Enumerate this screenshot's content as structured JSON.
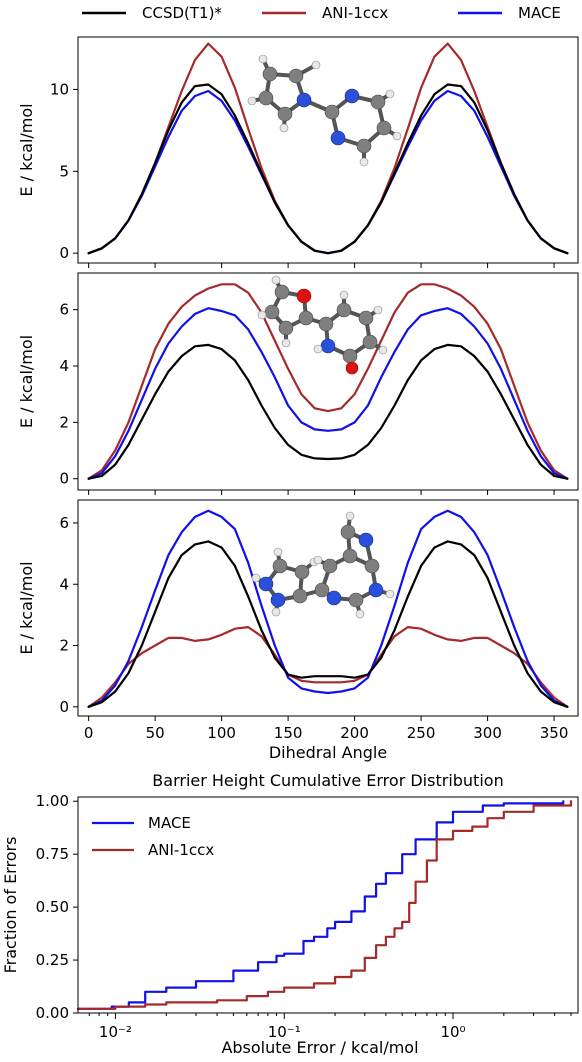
{
  "legend": {
    "ccsd": "CCSD(T1)*",
    "ani": "ANI-1ccx",
    "mace": "MACE"
  },
  "colors": {
    "ccsd": "#000000",
    "ani": "#a52a2a",
    "mace": "#1010e8",
    "atom_c": "#7f7f7f",
    "atom_n": "#2a4fd8",
    "atom_o": "#dd1111",
    "atom_h": "#e8e8e8"
  },
  "chart_data": [
    {
      "type": "line",
      "xlabel": "",
      "ylabel": "E / kcal/mol",
      "xlim": [
        -8,
        368
      ],
      "ylim": [
        -0.6,
        13.2
      ],
      "yticks": [
        0,
        5,
        10
      ],
      "xticks": [
        0,
        50,
        100,
        150,
        200,
        250,
        300,
        350
      ],
      "show_xtick_labels": false,
      "molecule_icon": "pyrrolyl-pyrimidine-molecule-icon",
      "x": [
        0,
        10,
        20,
        30,
        40,
        50,
        60,
        70,
        80,
        90,
        100,
        110,
        120,
        130,
        140,
        150,
        160,
        170,
        180,
        190,
        200,
        210,
        220,
        230,
        240,
        250,
        260,
        270,
        280,
        290,
        300,
        310,
        320,
        330,
        340,
        350,
        360
      ],
      "series": [
        {
          "name": "CCSD(T1)*",
          "key": "ccsd",
          "values": [
            0,
            0.3,
            0.9,
            2.0,
            3.6,
            5.5,
            7.5,
            9.2,
            10.2,
            10.3,
            9.7,
            8.4,
            6.7,
            4.9,
            3.1,
            1.7,
            0.7,
            0.15,
            0,
            0.15,
            0.7,
            1.7,
            3.1,
            4.9,
            6.7,
            8.4,
            9.7,
            10.3,
            10.2,
            9.2,
            7.5,
            5.5,
            3.6,
            2.0,
            0.9,
            0.3,
            0
          ]
        },
        {
          "name": "ANI-1ccx",
          "key": "ani",
          "values": [
            0,
            0.3,
            0.9,
            2.0,
            3.6,
            5.5,
            7.7,
            9.9,
            11.8,
            12.8,
            12.0,
            10.1,
            7.6,
            5.2,
            3.2,
            1.7,
            0.7,
            0.15,
            0,
            0.15,
            0.7,
            1.7,
            3.2,
            5.2,
            7.6,
            10.1,
            12.0,
            12.8,
            11.8,
            9.9,
            7.7,
            5.5,
            3.6,
            2.0,
            0.9,
            0.3,
            0
          ]
        },
        {
          "name": "MACE",
          "key": "mace",
          "values": [
            0,
            0.3,
            0.9,
            2.0,
            3.5,
            5.3,
            7.1,
            8.7,
            9.6,
            9.9,
            9.3,
            8.1,
            6.5,
            4.8,
            3.1,
            1.7,
            0.7,
            0.15,
            0,
            0.15,
            0.7,
            1.7,
            3.1,
            4.8,
            6.5,
            8.1,
            9.3,
            9.9,
            9.6,
            8.7,
            7.1,
            5.3,
            3.5,
            2.0,
            0.9,
            0.3,
            0
          ]
        }
      ]
    },
    {
      "type": "line",
      "xlabel": "",
      "ylabel": "E / kcal/mol",
      "xlim": [
        -8,
        368
      ],
      "ylim": [
        -0.4,
        7.3
      ],
      "yticks": [
        0,
        2,
        4,
        6
      ],
      "xticks": [
        0,
        50,
        100,
        150,
        200,
        250,
        300,
        350
      ],
      "show_xtick_labels": false,
      "molecule_icon": "furanyl-pyridinone-molecule-icon",
      "x": [
        0,
        10,
        20,
        30,
        40,
        50,
        60,
        70,
        80,
        90,
        100,
        110,
        120,
        130,
        140,
        150,
        160,
        170,
        180,
        190,
        200,
        210,
        220,
        230,
        240,
        250,
        260,
        270,
        280,
        290,
        300,
        310,
        320,
        330,
        340,
        350,
        360
      ],
      "series": [
        {
          "name": "CCSD(T1)*",
          "key": "ccsd",
          "values": [
            0,
            0.1,
            0.5,
            1.2,
            2.1,
            3.0,
            3.8,
            4.35,
            4.7,
            4.75,
            4.6,
            4.2,
            3.5,
            2.6,
            1.8,
            1.2,
            0.85,
            0.72,
            0.7,
            0.72,
            0.85,
            1.2,
            1.8,
            2.6,
            3.5,
            4.2,
            4.6,
            4.75,
            4.7,
            4.35,
            3.8,
            3.0,
            2.1,
            1.2,
            0.5,
            0.1,
            0
          ]
        },
        {
          "name": "ANI-1ccx",
          "key": "ani",
          "values": [
            0,
            0.3,
            1.0,
            2.0,
            3.3,
            4.6,
            5.5,
            6.1,
            6.5,
            6.75,
            6.9,
            6.9,
            6.6,
            5.9,
            4.9,
            3.9,
            3.0,
            2.5,
            2.4,
            2.5,
            3.0,
            3.9,
            4.9,
            5.9,
            6.6,
            6.9,
            6.9,
            6.75,
            6.5,
            6.1,
            5.5,
            4.6,
            3.3,
            2.0,
            1.0,
            0.3,
            0
          ]
        },
        {
          "name": "MACE",
          "key": "mace",
          "values": [
            0,
            0.2,
            0.8,
            1.7,
            2.8,
            3.9,
            4.8,
            5.4,
            5.85,
            6.05,
            5.95,
            5.8,
            5.3,
            4.5,
            3.6,
            2.6,
            2.0,
            1.75,
            1.7,
            1.75,
            2.0,
            2.6,
            3.6,
            4.5,
            5.3,
            5.8,
            5.95,
            6.05,
            5.85,
            5.4,
            4.8,
            3.9,
            2.8,
            1.7,
            0.8,
            0.2,
            0
          ]
        }
      ]
    },
    {
      "type": "line",
      "xlabel": "Dihedral Angle",
      "ylabel": "E / kcal/mol",
      "xlim": [
        -8,
        368
      ],
      "ylim": [
        -0.3,
        6.75
      ],
      "yticks": [
        0,
        2,
        4,
        6
      ],
      "xticks": [
        0,
        50,
        100,
        150,
        200,
        250,
        300,
        350
      ],
      "show_xtick_labels": true,
      "molecule_icon": "imidazolyl-pteridine-molecule-icon",
      "x": [
        0,
        10,
        20,
        30,
        40,
        50,
        60,
        70,
        80,
        90,
        100,
        110,
        120,
        130,
        140,
        150,
        160,
        170,
        180,
        190,
        200,
        210,
        220,
        230,
        240,
        250,
        260,
        270,
        280,
        290,
        300,
        310,
        320,
        330,
        340,
        350,
        360
      ],
      "series": [
        {
          "name": "CCSD(T1)*",
          "key": "ccsd",
          "values": [
            0,
            0.15,
            0.5,
            1.1,
            2.0,
            3.1,
            4.2,
            4.95,
            5.3,
            5.4,
            5.2,
            4.6,
            3.6,
            2.5,
            1.6,
            1.05,
            0.95,
            1.0,
            1.0,
            1.0,
            0.95,
            1.05,
            1.6,
            2.5,
            3.6,
            4.6,
            5.2,
            5.4,
            5.3,
            4.95,
            4.2,
            3.1,
            2.0,
            1.1,
            0.5,
            0.15,
            0
          ]
        },
        {
          "name": "ANI-1ccx",
          "key": "ani",
          "values": [
            0,
            0.3,
            0.8,
            1.4,
            1.75,
            2.0,
            2.25,
            2.25,
            2.15,
            2.2,
            2.35,
            2.55,
            2.6,
            2.3,
            1.7,
            1.05,
            0.85,
            0.8,
            0.8,
            0.8,
            0.85,
            1.05,
            1.7,
            2.3,
            2.6,
            2.55,
            2.35,
            2.2,
            2.15,
            2.25,
            2.25,
            2.0,
            1.75,
            1.4,
            0.8,
            0.3,
            0
          ]
        },
        {
          "name": "MACE",
          "key": "mace",
          "values": [
            0,
            0.2,
            0.7,
            1.5,
            2.6,
            3.8,
            4.95,
            5.7,
            6.2,
            6.4,
            6.2,
            5.8,
            4.7,
            3.3,
            2.0,
            0.95,
            0.6,
            0.5,
            0.45,
            0.5,
            0.6,
            0.95,
            2.0,
            3.3,
            4.7,
            5.8,
            6.2,
            6.4,
            6.2,
            5.7,
            4.95,
            3.8,
            2.6,
            1.5,
            0.7,
            0.2,
            0
          ]
        }
      ]
    },
    {
      "type": "line",
      "title": "Barrier Height Cumulative Error Distribution",
      "xlabel": "Absolute Error / kcal/mol",
      "ylabel": "Fraction of Errors",
      "xscale": "log",
      "xlim": [
        0.006,
        5.5
      ],
      "ylim": [
        0,
        1.02
      ],
      "xticks": [
        0.01,
        0.1,
        1
      ],
      "xtick_labels": [
        "10⁻²",
        "10⁻¹",
        "10⁰"
      ],
      "yticks": [
        0,
        0.25,
        0.5,
        0.75,
        1.0
      ],
      "ytick_labels": [
        "0.00",
        "0.25",
        "0.50",
        "0.75",
        "1.00"
      ],
      "legend_position": "top-left",
      "series": [
        {
          "name": "MACE",
          "key": "mace",
          "x": [
            0.006,
            0.0095,
            0.012,
            0.015,
            0.02,
            0.03,
            0.05,
            0.07,
            0.09,
            0.1,
            0.13,
            0.15,
            0.18,
            0.2,
            0.25,
            0.3,
            0.35,
            0.4,
            0.5,
            0.6,
            0.8,
            1.0,
            1.5,
            2.0,
            3.0,
            4.5
          ],
          "values": [
            0.02,
            0.03,
            0.05,
            0.1,
            0.12,
            0.15,
            0.2,
            0.24,
            0.27,
            0.28,
            0.34,
            0.36,
            0.4,
            0.43,
            0.48,
            0.55,
            0.61,
            0.66,
            0.75,
            0.82,
            0.9,
            0.95,
            0.98,
            0.99,
            0.99,
            1.0
          ]
        },
        {
          "name": "ANI-1ccx",
          "key": "ani",
          "x": [
            0.006,
            0.01,
            0.015,
            0.02,
            0.04,
            0.06,
            0.08,
            0.1,
            0.15,
            0.2,
            0.25,
            0.3,
            0.35,
            0.4,
            0.45,
            0.5,
            0.55,
            0.6,
            0.7,
            0.8,
            1.0,
            1.3,
            1.6,
            2.0,
            3.0,
            5.0
          ],
          "values": [
            0.02,
            0.03,
            0.04,
            0.05,
            0.06,
            0.08,
            0.1,
            0.12,
            0.14,
            0.17,
            0.2,
            0.26,
            0.32,
            0.36,
            0.4,
            0.43,
            0.52,
            0.62,
            0.72,
            0.82,
            0.86,
            0.88,
            0.92,
            0.95,
            0.98,
            1.0
          ]
        }
      ]
    }
  ]
}
